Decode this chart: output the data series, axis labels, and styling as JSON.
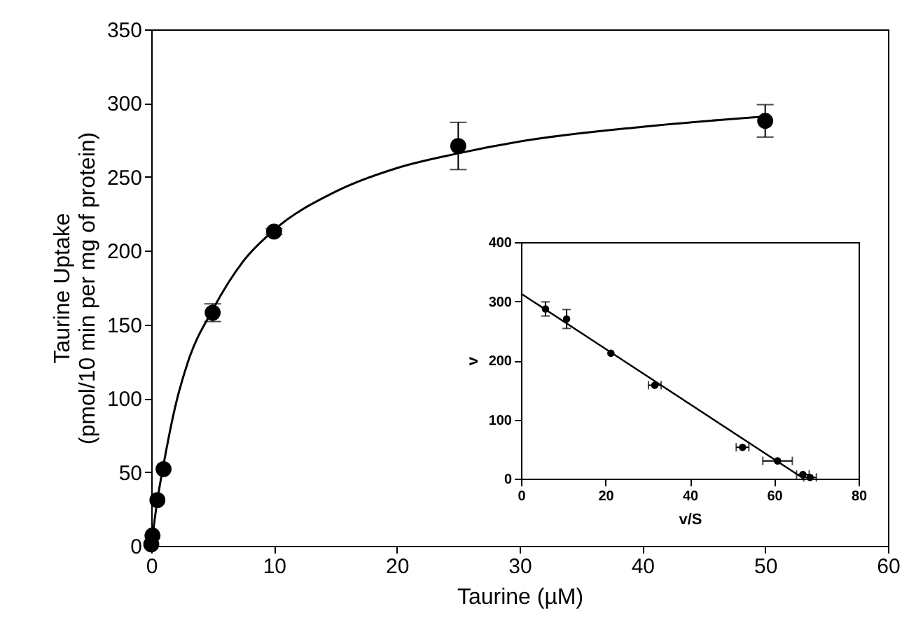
{
  "chart_data": [
    {
      "type": "scatter",
      "xlabel": "Taurine (µM)",
      "ylabel": "Taurine Uptake\n(pmol/10 min per mg of protein)",
      "xlim": [
        0,
        60
      ],
      "xticks": [
        0,
        10,
        20,
        30,
        40,
        50,
        60
      ],
      "ylim": [
        0,
        350
      ],
      "yticks": [
        0,
        50,
        100,
        150,
        200,
        250,
        300,
        350
      ],
      "grid": false,
      "series": [
        {
          "color": "#000000",
          "marker": "circle",
          "x": [
            0,
            0.1,
            0.5,
            1,
            5,
            10,
            25,
            50
          ],
          "values": [
            1,
            7,
            31,
            52,
            158,
            213,
            271,
            288
          ],
          "errors": [
            null,
            null,
            null,
            null,
            6,
            2,
            16,
            11
          ]
        },
        {
          "type": "line",
          "color": "#000000",
          "x": [
            0,
            0.5,
            1,
            2,
            3,
            5,
            7.5,
            10,
            15,
            20,
            25,
            30,
            40,
            50
          ],
          "values": [
            0,
            31,
            55,
            96,
            125,
            160,
            193,
            214,
            240,
            256,
            266,
            274,
            284,
            291
          ]
        }
      ]
    },
    {
      "type": "scatter",
      "xlabel": "v/S",
      "ylabel": "v",
      "xlim": [
        0,
        80
      ],
      "xticks": [
        0,
        20,
        40,
        60,
        80
      ],
      "ylim": [
        0,
        400
      ],
      "yticks": [
        0,
        100,
        200,
        300,
        400
      ],
      "grid": false,
      "series": [
        {
          "color": "#000000",
          "marker": "circle",
          "x": [
            5.8,
            10.8,
            21.3,
            31.7,
            52.5,
            60.8,
            66.8,
            68.5
          ],
          "values": [
            287,
            270,
            212,
            158,
            53,
            30,
            7,
            2
          ],
          "errors": [
            12,
            16,
            null,
            null,
            null,
            null,
            null,
            null
          ],
          "xerrors": [
            null,
            null,
            null,
            1.5,
            1.5,
            3.5,
            1.5,
            1.5
          ]
        },
        {
          "type": "line",
          "color": "#000000",
          "x": [
            0,
            67
          ],
          "values": [
            313,
            0
          ]
        }
      ]
    }
  ]
}
